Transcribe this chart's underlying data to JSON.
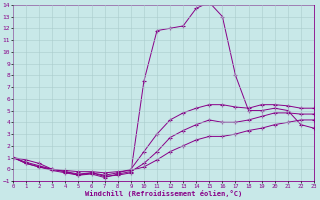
{
  "xlabel": "Windchill (Refroidissement éolien,°C)",
  "background_color": "#c8e8e8",
  "line_color": "#880088",
  "grid_color": "#aacccc",
  "xlim": [
    0,
    23
  ],
  "ylim": [
    -1,
    14
  ],
  "xticks": [
    0,
    1,
    2,
    3,
    4,
    5,
    6,
    7,
    8,
    9,
    10,
    11,
    12,
    13,
    14,
    15,
    16,
    17,
    18,
    19,
    20,
    21,
    22,
    23
  ],
  "yticks": [
    -1,
    0,
    1,
    2,
    3,
    4,
    5,
    6,
    7,
    8,
    9,
    10,
    11,
    12,
    13,
    14
  ],
  "curve1_x": [
    0,
    1,
    2,
    3,
    4,
    5,
    6,
    7,
    8,
    9,
    10,
    11,
    12,
    13,
    14,
    15,
    16,
    17,
    18,
    19,
    20,
    21,
    22,
    23
  ],
  "curve1_y": [
    1.0,
    0.8,
    0.5,
    0.0,
    -0.2,
    -0.5,
    -0.3,
    -0.6,
    -0.5,
    -0.3,
    7.5,
    11.8,
    12.0,
    12.2,
    13.7,
    14.2,
    13.0,
    8.0,
    5.0,
    5.0,
    5.2,
    5.0,
    3.8,
    3.5
  ],
  "curve2_x": [
    0,
    1,
    2,
    3,
    4,
    5,
    6,
    7,
    8,
    9,
    10,
    11,
    12,
    13,
    14,
    15,
    16,
    17,
    18,
    19,
    20,
    21,
    22,
    23
  ],
  "curve2_y": [
    1.0,
    0.6,
    0.3,
    0.0,
    -0.2,
    -0.4,
    -0.3,
    -0.5,
    -0.3,
    0.0,
    1.5,
    3.0,
    4.2,
    4.8,
    5.2,
    5.5,
    5.5,
    5.3,
    5.2,
    5.5,
    5.5,
    5.4,
    5.2,
    5.2
  ],
  "curve3_x": [
    0,
    1,
    2,
    3,
    4,
    5,
    6,
    7,
    8,
    9,
    10,
    11,
    12,
    13,
    14,
    15,
    16,
    17,
    18,
    19,
    20,
    21,
    22,
    23
  ],
  "curve3_y": [
    1.0,
    0.5,
    0.2,
    -0.1,
    -0.3,
    -0.5,
    -0.4,
    -0.7,
    -0.4,
    -0.2,
    0.5,
    1.5,
    2.7,
    3.3,
    3.8,
    4.2,
    4.0,
    4.0,
    4.2,
    4.5,
    4.8,
    4.8,
    4.7,
    4.7
  ],
  "curve4_x": [
    0,
    1,
    2,
    3,
    4,
    5,
    6,
    7,
    8,
    9,
    10,
    11,
    12,
    13,
    14,
    15,
    16,
    17,
    18,
    19,
    20,
    21,
    22,
    23
  ],
  "curve4_y": [
    1.0,
    0.5,
    0.2,
    0.0,
    -0.1,
    -0.2,
    -0.2,
    -0.3,
    -0.2,
    -0.1,
    0.2,
    0.8,
    1.5,
    2.0,
    2.5,
    2.8,
    2.8,
    3.0,
    3.3,
    3.5,
    3.8,
    4.0,
    4.2,
    4.2
  ]
}
